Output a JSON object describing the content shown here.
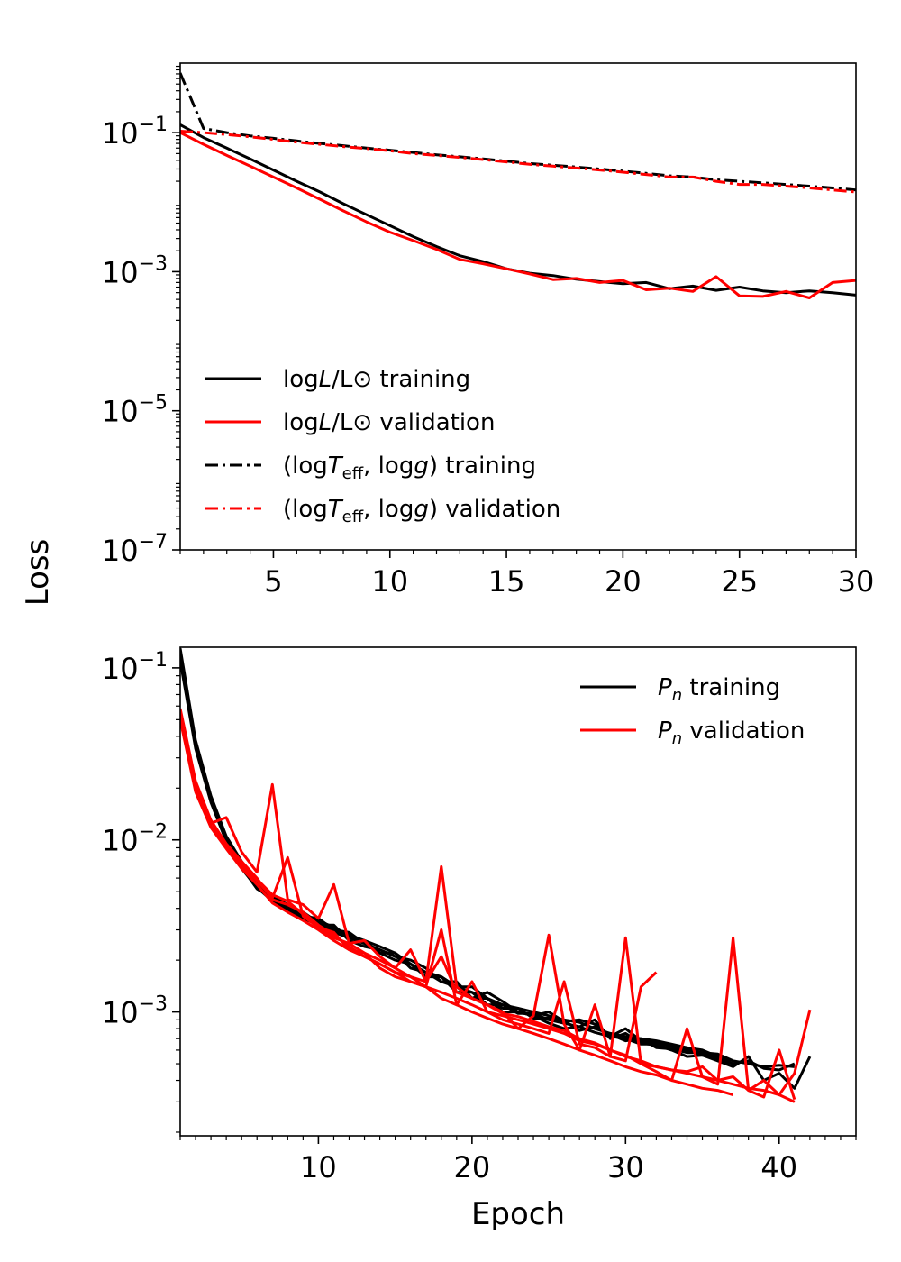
{
  "figure": {
    "shared_ylabel": "Loss"
  },
  "chart_data": [
    {
      "type": "line",
      "id": "top",
      "yscale": "log",
      "xlim": [
        1,
        30
      ],
      "ylim_log10": [
        -7,
        0
      ],
      "xticks": [
        5,
        10,
        15,
        20,
        25,
        30
      ],
      "xtick_labels": [
        "5",
        "10",
        "15",
        "20",
        "25",
        "30"
      ],
      "yticks": [
        {
          "exp": -1,
          "base": "10",
          "sup": "−1"
        },
        {
          "exp": -3,
          "base": "10",
          "sup": "−3"
        },
        {
          "exp": -5,
          "base": "10",
          "sup": "−5"
        },
        {
          "exp": -7,
          "base": "10",
          "sup": "−7"
        }
      ],
      "legend_position": "lower-left",
      "series": [
        {
          "name": "logL/L⊙ training",
          "legend": {
            "pre": "log",
            "it": "L",
            "post": "/L⊙ training"
          },
          "color": "#000000",
          "dash": "solid",
          "x": [
            1,
            2,
            3,
            4,
            5,
            6,
            7,
            8,
            9,
            10,
            11,
            12,
            13,
            14,
            15,
            16,
            17,
            18,
            19,
            20,
            21,
            22,
            23,
            24,
            25,
            26,
            27,
            28,
            29,
            30
          ],
          "y": [
            0.13,
            0.085,
            0.06,
            0.042,
            0.029,
            0.02,
            0.014,
            0.0095,
            0.0066,
            0.0046,
            0.0032,
            0.0023,
            0.0017,
            0.0014,
            0.0011,
            0.00095,
            0.00088,
            0.00078,
            0.00072,
            0.00067,
            0.0007,
            0.00057,
            0.00062,
            0.00054,
            0.0006,
            0.00053,
            0.0005,
            0.00053,
            0.0005,
            0.00046
          ]
        },
        {
          "name": "logL/L⊙ validation",
          "legend": {
            "pre": "log",
            "it": "L",
            "post": "/L⊙ validation"
          },
          "color": "#ff0000",
          "dash": "solid",
          "x": [
            1,
            2,
            3,
            4,
            5,
            6,
            7,
            8,
            9,
            10,
            11,
            12,
            13,
            14,
            15,
            16,
            17,
            18,
            19,
            20,
            21,
            22,
            23,
            24,
            25,
            26,
            27,
            28,
            29,
            30
          ],
          "y": [
            0.1,
            0.068,
            0.047,
            0.033,
            0.023,
            0.016,
            0.011,
            0.0075,
            0.0052,
            0.0037,
            0.0028,
            0.0021,
            0.0015,
            0.0013,
            0.0011,
            0.00093,
            0.00077,
            0.0008,
            0.0007,
            0.00075,
            0.00055,
            0.00058,
            0.00052,
            0.00085,
            0.00045,
            0.00044,
            0.00052,
            0.00042,
            0.0007,
            0.00075
          ]
        },
        {
          "name": "(logTeff, logg) training",
          "legend": {
            "pre": "(log",
            "it": "T",
            "sub": "eff",
            "post": ", log",
            "it2": "g",
            "post2": ") training"
          },
          "color": "#000000",
          "dash": "dashdot",
          "x": [
            1,
            2,
            3,
            4,
            5,
            6,
            7,
            8,
            9,
            10,
            11,
            12,
            13,
            14,
            15,
            16,
            17,
            18,
            19,
            20,
            21,
            22,
            23,
            24,
            25,
            26,
            27,
            28,
            29,
            30
          ],
          "y": [
            0.72,
            0.115,
            0.1,
            0.09,
            0.083,
            0.076,
            0.07,
            0.065,
            0.06,
            0.056,
            0.052,
            0.048,
            0.045,
            0.042,
            0.039,
            0.036,
            0.034,
            0.032,
            0.03,
            0.028,
            0.026,
            0.024,
            0.023,
            0.021,
            0.02,
            0.019,
            0.018,
            0.017,
            0.016,
            0.015
          ]
        },
        {
          "name": "(logTeff, logg) validation",
          "legend": {
            "pre": "(log",
            "it": "T",
            "sub": "eff",
            "post": ", log",
            "it2": "g",
            "post2": ") validation"
          },
          "color": "#ff0000",
          "dash": "dashdot",
          "x": [
            1,
            2,
            3,
            4,
            5,
            6,
            7,
            8,
            9,
            10,
            11,
            12,
            13,
            14,
            15,
            16,
            17,
            18,
            19,
            20,
            21,
            22,
            23,
            24,
            25,
            26,
            27,
            28,
            29,
            30
          ],
          "y": [
            0.105,
            0.1,
            0.094,
            0.087,
            0.08,
            0.073,
            0.068,
            0.063,
            0.059,
            0.055,
            0.05,
            0.047,
            0.044,
            0.041,
            0.038,
            0.035,
            0.033,
            0.031,
            0.029,
            0.027,
            0.025,
            0.023,
            0.023,
            0.02,
            0.018,
            0.018,
            0.017,
            0.016,
            0.015,
            0.014
          ]
        }
      ]
    },
    {
      "type": "line",
      "id": "bottom",
      "yscale": "log",
      "xlim": [
        1,
        45
      ],
      "ylim_log10": [
        -3.72,
        -0.88
      ],
      "xticks": [
        10,
        20,
        30,
        40
      ],
      "xtick_labels": [
        "10",
        "20",
        "30",
        "40"
      ],
      "yticks": [
        {
          "exp": -1,
          "base": "10",
          "sup": "−1"
        },
        {
          "exp": -2,
          "base": "10",
          "sup": "−2"
        },
        {
          "exp": -3,
          "base": "10",
          "sup": "−3"
        }
      ],
      "xlabel": "Epoch",
      "legend_position": "top-right",
      "legend": [
        {
          "it": "P",
          "sub": "n",
          "post": " training",
          "color": "#000000"
        },
        {
          "it": "P",
          "sub": "n",
          "post": " validation",
          "color": "#ff0000"
        }
      ],
      "series": [
        {
          "name": "Pn training 1",
          "color": "#000000",
          "y": [
            0.13,
            0.038,
            0.018,
            0.0105,
            0.0075,
            0.0055,
            0.0047,
            0.0042,
            0.0037,
            0.0034,
            0.0031,
            0.0028,
            0.0026,
            0.0024,
            0.0022,
            0.0019,
            0.0017,
            0.0016,
            0.0014,
            0.0013,
            0.0012,
            0.0011,
            0.00105,
            0.001,
            0.00095,
            0.0009,
            0.00087,
            0.0008,
            0.00075,
            0.00072,
            0.0007,
            0.00068,
            0.00065,
            0.00062,
            0.0006,
            0.00055,
            0.00052,
            0.0005,
            0.00048,
            0.00049,
            0.00048
          ]
        },
        {
          "name": "Pn training 2",
          "color": "#000000",
          "y": [
            0.12,
            0.035,
            0.017,
            0.01,
            0.007,
            0.0052,
            0.0046,
            0.0041,
            0.0036,
            0.0035,
            0.003,
            0.0027,
            0.0025,
            0.0023,
            0.0021,
            0.002,
            0.0018,
            0.0015,
            0.0015,
            0.0012,
            0.0013,
            0.00115,
            0.001,
            0.00095,
            0.001,
            0.00088,
            0.0009,
            0.00085,
            0.00072,
            0.0008,
            0.00068,
            0.00066,
            0.00063,
            0.0006,
            0.00058,
            0.00057,
            0.00052
          ]
        },
        {
          "name": "Pn training 3",
          "color": "#000000",
          "y": [
            0.11,
            0.034,
            0.0165,
            0.0098,
            0.0068,
            0.0053,
            0.0044,
            0.0039,
            0.0035,
            0.0032,
            0.0032,
            0.0026,
            0.0024,
            0.0023,
            0.0021,
            0.0019,
            0.0017,
            0.0016,
            0.0013,
            0.0013,
            0.0011,
            0.0011,
            0.00098,
            0.00098,
            0.0009,
            0.00086,
            0.00082,
            0.0009,
            0.0007,
            0.00075,
            0.00066,
            0.00064,
            0.0006,
            0.0006,
            0.00056,
            0.00052,
            0.00048,
            0.00055,
            0.0004,
            0.00044,
            0.00036,
            0.00055
          ]
        },
        {
          "name": "Pn training 4",
          "color": "#000000",
          "y": [
            0.125,
            0.036,
            0.0172,
            0.0101,
            0.0071,
            0.0054,
            0.0045,
            0.004,
            0.0038,
            0.0033,
            0.003,
            0.0029,
            0.0025,
            0.0022,
            0.0022,
            0.0018,
            0.0017,
            0.0015,
            0.0014,
            0.0014,
            0.0012,
            0.00105,
            0.00105,
            0.00092,
            0.00092,
            0.00089,
            0.00078,
            0.00082,
            0.00074,
            0.00068,
            0.0007,
            0.00062,
            0.00061,
            0.00058,
            0.00058,
            0.00054,
            0.0005,
            0.00052,
            0.00047,
            0.00046,
            0.0005
          ]
        },
        {
          "name": "Pn training 5",
          "color": "#000000",
          "y": [
            0.118,
            0.035,
            0.0168,
            0.0099,
            0.0069,
            0.0052,
            0.0046,
            0.0039,
            0.0036,
            0.0033,
            0.0029,
            0.0027,
            0.0026,
            0.0022,
            0.002,
            0.0019,
            0.0016,
            0.0016,
            0.0014,
            0.0012,
            0.0012,
            0.001,
            0.001,
            0.00095,
            0.00086,
            0.0008,
            0.00082,
            0.00076,
            0.00072,
            0.0007,
            0.00065,
            0.00065,
            0.0006,
            0.00055,
            0.00056,
            0.00053,
            0.0005
          ]
        },
        {
          "name": "Pn validation 1",
          "color": "#ff0000",
          "y": [
            0.058,
            0.022,
            0.013,
            0.0095,
            0.0075,
            0.006,
            0.0045,
            0.0042,
            0.0038,
            0.0032,
            0.0028,
            0.0024,
            0.0021,
            0.0019,
            0.0017,
            0.0016,
            0.0014,
            0.0013,
            0.0012,
            0.0011,
            0.001,
            0.00095,
            0.0009,
            0.00085,
            0.0008,
            0.00075,
            0.00068,
            0.00065,
            0.0006,
            0.00055,
            0.00052,
            0.00048,
            0.00046,
            0.00044,
            0.00042,
            0.0004,
            0.00038,
            0.00036,
            0.00035,
            0.00033,
            0.0003
          ]
        },
        {
          "name": "Pn validation 2",
          "color": "#ff0000",
          "y": [
            0.055,
            0.021,
            0.0125,
            0.0135,
            0.0085,
            0.0065,
            0.021,
            0.0045,
            0.0042,
            0.0035,
            0.0055,
            0.0025,
            0.0026,
            0.0021,
            0.0018,
            0.0023,
            0.0015,
            0.007,
            0.0014,
            0.0012,
            0.0011,
            0.001,
            0.0008,
            0.00095,
            0.0028,
            0.00085,
            0.0006,
            0.0011,
            0.00055,
            0.0027,
            0.0005,
            0.00045,
            0.0004,
            0.0008,
            0.00042,
            0.00038,
            0.0027,
            0.00035,
            0.00032,
            0.0006,
            0.00031
          ]
        },
        {
          "name": "Pn validation 3",
          "color": "#ff0000",
          "y": [
            0.052,
            0.02,
            0.012,
            0.0092,
            0.007,
            0.0058,
            0.0046,
            0.0079,
            0.0036,
            0.0031,
            0.0029,
            0.0023,
            0.0022,
            0.0018,
            0.0016,
            0.0015,
            0.0014,
            0.003,
            0.0011,
            0.0015,
            0.001,
            0.0009,
            0.00085,
            0.0008,
            0.00075,
            0.0015,
            0.00065,
            0.00062,
            0.00055,
            0.00052,
            0.0014,
            0.0017
          ]
        },
        {
          "name": "Pn validation 4",
          "color": "#ff0000",
          "y": [
            0.056,
            0.021,
            0.0128,
            0.0094,
            0.0072,
            0.0059,
            0.0048,
            0.0044,
            0.0037,
            0.0031,
            0.0027,
            0.0025,
            0.0022,
            0.002,
            0.0018,
            0.0016,
            0.0015,
            0.0021,
            0.0013,
            0.0012,
            0.0011,
            0.00098,
            0.00094,
            0.00088,
            0.00082,
            0.00078,
            0.0007,
            0.00066,
            0.0006,
            0.00056,
            0.0005,
            0.00048,
            0.00046,
            0.00045,
            0.00048,
            0.0004,
            0.00042,
            0.00035,
            0.0004,
            0.00033,
            0.00044,
            0.00103
          ]
        },
        {
          "name": "Pn validation 5",
          "color": "#ff0000",
          "y": [
            0.05,
            0.019,
            0.0118,
            0.0089,
            0.0068,
            0.0055,
            0.0043,
            0.0038,
            0.0034,
            0.003,
            0.0026,
            0.0023,
            0.0021,
            0.0019,
            0.0017,
            0.0015,
            0.0014,
            0.0012,
            0.0011,
            0.001,
            0.00092,
            0.00085,
            0.0008,
            0.00075,
            0.0007,
            0.00065,
            0.0006,
            0.00056,
            0.00052,
            0.00048,
            0.00045,
            0.00043,
            0.0004,
            0.00038,
            0.00036,
            0.00035,
            0.00033
          ]
        }
      ]
    }
  ]
}
